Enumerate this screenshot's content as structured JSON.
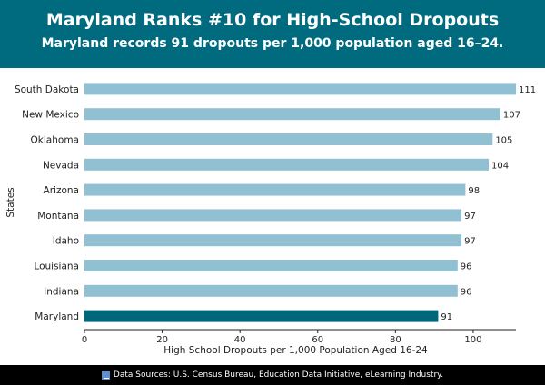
{
  "header": {
    "title": "Maryland Ranks #10 for High-School Dropouts",
    "subtitle": "Maryland records 91 dropouts per 1,000 population aged 16–24."
  },
  "footer": {
    "source": "Data Sources: U.S. Census Bureau, Education Data Initiative, eLearning Industry.",
    "icon": "chart-icon"
  },
  "colors": {
    "header_bg": "#006b7f",
    "bar": "#92c0d3",
    "highlight_bar": "#00667a",
    "footer_bg": "#000000"
  },
  "chart_data": {
    "type": "bar",
    "orientation": "horizontal",
    "title": "Maryland Ranks #10 for High-School Dropouts",
    "subtitle": "Maryland records 91 dropouts per 1,000 population aged 16–24.",
    "xlabel": "High School Dropouts per 1,000 Population Aged 16-24",
    "ylabel": "States",
    "categories": [
      "South Dakota",
      "New Mexico",
      "Oklahoma",
      "Nevada",
      "Arizona",
      "Montana",
      "Idaho",
      "Louisiana",
      "Indiana",
      "Maryland"
    ],
    "values": [
      111,
      107,
      105,
      104,
      98,
      97,
      97,
      96,
      96,
      91
    ],
    "highlight": "Maryland",
    "xlim": [
      0,
      111
    ],
    "xticks": [
      0,
      20,
      40,
      60,
      80,
      100
    ],
    "grid": false,
    "data_labels": true
  }
}
